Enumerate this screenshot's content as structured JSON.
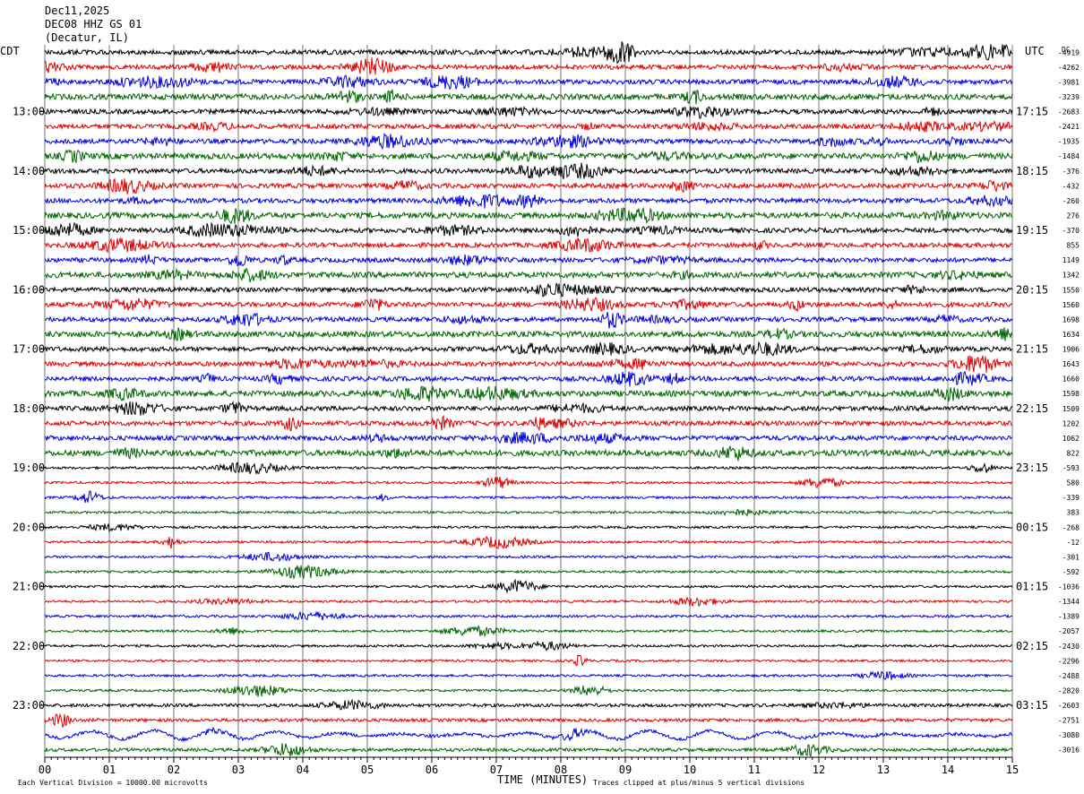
{
  "header": {
    "date": "Dec11,2025",
    "station": "DEC08 HHZ GS 01",
    "location": "(Decatur, IL)"
  },
  "labels": {
    "left_timezone": "CDT",
    "right_timezone": "UTC",
    "dc_label": "DC",
    "xlabel": "TIME (MINUTES)",
    "footer_left": "Each Vertical Division = 10000.00 microvolts",
    "footer_right": "Traces clipped at plus/minus 5 vertical divisions"
  },
  "colors": {
    "black": "#000000",
    "red": "#e00000",
    "blue": "#0000e0",
    "green": "#006400",
    "gridline": "#777777"
  },
  "chart_data": {
    "type": "line",
    "x_ticks": [
      "00",
      "01",
      "02",
      "03",
      "04",
      "05",
      "06",
      "07",
      "08",
      "09",
      "10",
      "11",
      "12",
      "13",
      "14",
      "15"
    ],
    "xlim": [
      0,
      15
    ],
    "grid": true,
    "trace_color_cycle": [
      "black",
      "red",
      "blue",
      "green"
    ],
    "rows_per_hour": 4,
    "left_hour_labels": [
      "13:00",
      "14:00",
      "15:00",
      "16:00",
      "17:00",
      "18:00",
      "19:00",
      "20:00",
      "21:00",
      "22:00",
      "23:00"
    ],
    "right_hour_labels": [
      "17:15",
      "18:15",
      "19:15",
      "20:15",
      "21:15",
      "22:15",
      "23:15",
      "00:15",
      "01:15",
      "02:15",
      "03:15"
    ],
    "first_labeled_row": 4,
    "dc_offsets": [
      -4919,
      -4262,
      -3981,
      -3239,
      -2683,
      -2421,
      -1935,
      -1484,
      -376,
      -432,
      -260,
      276,
      -370,
      855,
      1149,
      1342,
      1550,
      1560,
      1698,
      1634,
      1906,
      1643,
      1660,
      1598,
      1509,
      1202,
      1062,
      822,
      -593,
      580,
      -339,
      383,
      -268,
      -12,
      -301,
      -592,
      -1036,
      -1344,
      -1389,
      -2057,
      -2430,
      -2296,
      -2488,
      -2820,
      -2603,
      -2751,
      -3080,
      -3016
    ],
    "series_units": "microvolts"
  }
}
